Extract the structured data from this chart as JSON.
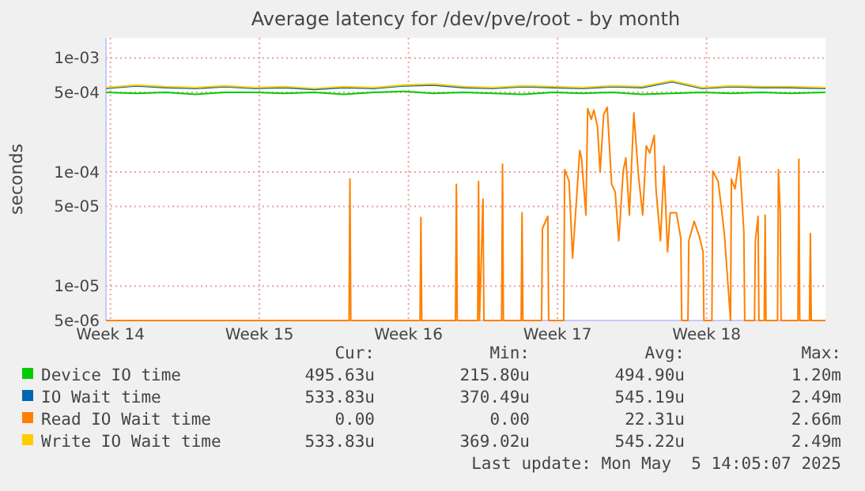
{
  "chart_data": {
    "type": "line",
    "title": "Average latency for /dev/pve/root - by month",
    "ylabel": "seconds",
    "log": "y",
    "grid": true,
    "legend": "bottom",
    "marker": "none",
    "line_style": "solid",
    "xlim": [
      "2025-03-30T19:00",
      "2025-05-03T14:00"
    ],
    "xticks": [
      {
        "value": "2025-03-31",
        "label": "Week 14"
      },
      {
        "value": "2025-04-07",
        "label": "Week 15"
      },
      {
        "value": "2025-04-14",
        "label": "Week 16"
      },
      {
        "value": "2025-04-21",
        "label": "Week 17"
      },
      {
        "value": "2025-04-28",
        "label": "Week 18"
      }
    ],
    "ylim": [
      5e-06,
      0.0015
    ],
    "yticks": [
      {
        "value": 5e-06,
        "label": "5e-06"
      },
      {
        "value": 1e-05,
        "label": "1e-05"
      },
      {
        "value": 5e-05,
        "label": "5e-05"
      },
      {
        "value": 0.0001,
        "label": "1e-04"
      },
      {
        "value": 0.0005,
        "label": "5e-04"
      },
      {
        "value": 0.001,
        "label": "1e-03"
      }
    ],
    "x": [
      "2025-03-30T19:00",
      "2025-04-01T05:00",
      "2025-04-02T14:00",
      "2025-04-04T00:00",
      "2025-04-05T09:00",
      "2025-04-06T19:00",
      "2025-04-08T04:00",
      "2025-04-09T14:00",
      "2025-04-10T23:00",
      "2025-04-12T09:00",
      "2025-04-13T19:00",
      "2025-04-15T04:00",
      "2025-04-16T14:00",
      "2025-04-17T23:00",
      "2025-04-19T09:00",
      "2025-04-20T19:00",
      "2025-04-22T04:00",
      "2025-04-23T14:00",
      "2025-04-24T23:00",
      "2025-04-26T09:00",
      "2025-04-27T19:00",
      "2025-04-29T04:00",
      "2025-04-30T14:00",
      "2025-05-01T23:00",
      "2025-05-03T14:00"
    ],
    "series": [
      {
        "name": "Device IO time",
        "color": "#00cc00",
        "values": [
          0.0005,
          0.00049,
          0.0005,
          0.00048,
          0.0005,
          0.0005,
          0.00049,
          0.0005,
          0.00048,
          0.0005,
          0.00051,
          0.00049,
          0.0005,
          0.00049,
          0.00048,
          0.0005,
          0.00049,
          0.0005,
          0.00048,
          0.00049,
          0.0005,
          0.00049,
          0.0005,
          0.00049,
          0.0005
        ]
      },
      {
        "name": "IO Wait time",
        "color": "#0066b3",
        "values": [
          0.00054,
          0.00057,
          0.00055,
          0.00054,
          0.00056,
          0.00054,
          0.00055,
          0.00053,
          0.00055,
          0.00054,
          0.00057,
          0.00058,
          0.00055,
          0.00054,
          0.00056,
          0.00055,
          0.00054,
          0.00056,
          0.00055,
          0.00062,
          0.00054,
          0.00056,
          0.00055,
          0.00055,
          0.00054
        ]
      },
      {
        "name": "Read IO Wait time",
        "color": "#ff8000",
        "x": [
          "2025-03-30T19:00",
          "2025-04-11T05:00",
          "2025-04-11T06:00",
          "2025-04-11T07:00",
          "2025-04-14T13:00",
          "2025-04-14T14:00",
          "2025-04-14T15:00",
          "2025-04-16T05:00",
          "2025-04-16T06:00",
          "2025-04-16T07:00",
          "2025-04-17T06:00",
          "2025-04-17T07:00",
          "2025-04-17T08:00",
          "2025-04-17T12:00",
          "2025-04-17T13:00",
          "2025-04-18T09:00",
          "2025-04-18T10:00",
          "2025-04-18T11:00",
          "2025-04-19T07:00",
          "2025-04-19T08:00",
          "2025-04-19T09:00",
          "2025-04-20T06:00",
          "2025-04-20T07:00",
          "2025-04-20T13:00",
          "2025-04-20T14:00",
          "2025-04-21T07:00",
          "2025-04-21T08:00",
          "2025-04-21T13:00",
          "2025-04-21T17:00",
          "2025-04-22T01:00",
          "2025-04-22T03:00",
          "2025-04-22T08:00",
          "2025-04-22T10:00",
          "2025-04-22T14:00",
          "2025-04-22T17:00",
          "2025-04-22T21:00",
          "2025-04-23T00:00",
          "2025-04-23T04:00",
          "2025-04-23T08:00",
          "2025-04-23T13:00",
          "2025-04-23T17:00",
          "2025-04-23T21:00",
          "2025-04-24T02:00",
          "2025-04-24T05:00",
          "2025-04-24T09:00",
          "2025-04-24T14:00",
          "2025-04-24T19:00",
          "2025-04-25T00:00",
          "2025-04-25T04:00",
          "2025-04-25T08:00",
          "2025-04-25T13:00",
          "2025-04-25T15:00",
          "2025-04-25T20:00",
          "2025-04-26T00:00",
          "2025-04-26T04:00",
          "2025-04-26T07:00",
          "2025-04-26T14:00",
          "2025-04-26T19:00",
          "2025-04-26T20:00",
          "2025-04-27T03:00",
          "2025-04-27T04:00",
          "2025-04-27T10:00",
          "2025-04-27T16:00",
          "2025-04-27T20:00",
          "2025-04-27T21:00",
          "2025-04-28T06:00",
          "2025-04-28T07:00",
          "2025-04-28T13:00",
          "2025-04-28T16:00",
          "2025-04-28T20:00",
          "2025-04-29T03:00",
          "2025-04-29T04:00",
          "2025-04-29T08:00",
          "2025-04-29T13:00",
          "2025-04-29T18:00",
          "2025-04-29T19:00",
          "2025-04-30T06:00",
          "2025-04-30T07:00",
          "2025-04-30T10:00",
          "2025-04-30T11:00",
          "2025-04-30T17:00",
          "2025-04-30T18:00",
          "2025-04-30T19:00",
          "2025-05-01T08:00",
          "2025-05-01T09:00",
          "2025-05-01T11:00",
          "2025-05-01T12:00",
          "2025-05-02T07:00",
          "2025-05-02T08:00",
          "2025-05-02T09:00",
          "2025-05-02T20:00",
          "2025-05-02T21:00",
          "2025-05-02T22:00",
          "2025-05-03T14:00"
        ],
        "values": [
          5e-06,
          5e-06,
          8.7e-05,
          5e-06,
          5e-06,
          4e-05,
          5e-06,
          5e-06,
          7.8e-05,
          5e-06,
          5e-06,
          8.3e-05,
          5e-06,
          5.8e-05,
          5e-06,
          5e-06,
          0.000117,
          5e-06,
          5e-06,
          4.4e-05,
          5e-06,
          5e-06,
          3.2e-05,
          4.1e-05,
          5e-06,
          5e-06,
          0.000105,
          8.3e-05,
          1.76e-05,
          0.000155,
          0.000133,
          4.2e-05,
          0.00036,
          0.00029,
          0.00035,
          0.00025,
          0.0001,
          0.00032,
          0.00037,
          7.8e-05,
          6.7e-05,
          2.5e-05,
          0.000102,
          0.000133,
          4.2e-05,
          0.00033,
          9.7e-05,
          4.2e-05,
          0.00017,
          0.000147,
          0.00021,
          7.1e-05,
          2.5e-05,
          0.000113,
          2e-05,
          4.4e-05,
          4.4e-05,
          2.6e-05,
          5e-06,
          5e-06,
          2.5e-05,
          3.7e-05,
          2.7e-05,
          2e-05,
          5e-06,
          5e-06,
          0.000102,
          8.3e-05,
          5.4e-05,
          2.9e-05,
          5e-06,
          8.7e-05,
          7.1e-05,
          0.000136,
          3e-05,
          5e-06,
          5e-06,
          2.5e-05,
          4.1e-05,
          5e-06,
          5e-06,
          4.2e-05,
          5e-06,
          5e-06,
          0.000105,
          4.4e-05,
          5e-06,
          5e-06,
          0.00013,
          5e-06,
          5e-06,
          2.9e-05,
          5e-06,
          5e-06
        ]
      },
      {
        "name": "Write IO Wait time",
        "color": "#ffcc00",
        "values": [
          0.00055,
          0.00058,
          0.00056,
          0.00055,
          0.00057,
          0.00055,
          0.00056,
          0.00054,
          0.00056,
          0.00055,
          0.00058,
          0.00059,
          0.00056,
          0.00055,
          0.00057,
          0.00056,
          0.00055,
          0.00057,
          0.00056,
          0.00063,
          0.00055,
          0.00057,
          0.00056,
          0.00056,
          0.00055
        ]
      }
    ],
    "annotations": [
      "Cur:",
      "Min:",
      "Avg:",
      "Max:",
      "495.63u",
      "215.80u",
      "494.90u",
      "1.20m",
      "533.83u",
      "370.49u",
      "545.19u",
      "2.49m",
      "0.00",
      "0.00",
      "22.31u",
      "2.66m",
      "533.83u",
      "369.02u",
      "545.22u",
      "2.49m",
      "Last update: Mon May  5 14:05:07 2025"
    ]
  }
}
